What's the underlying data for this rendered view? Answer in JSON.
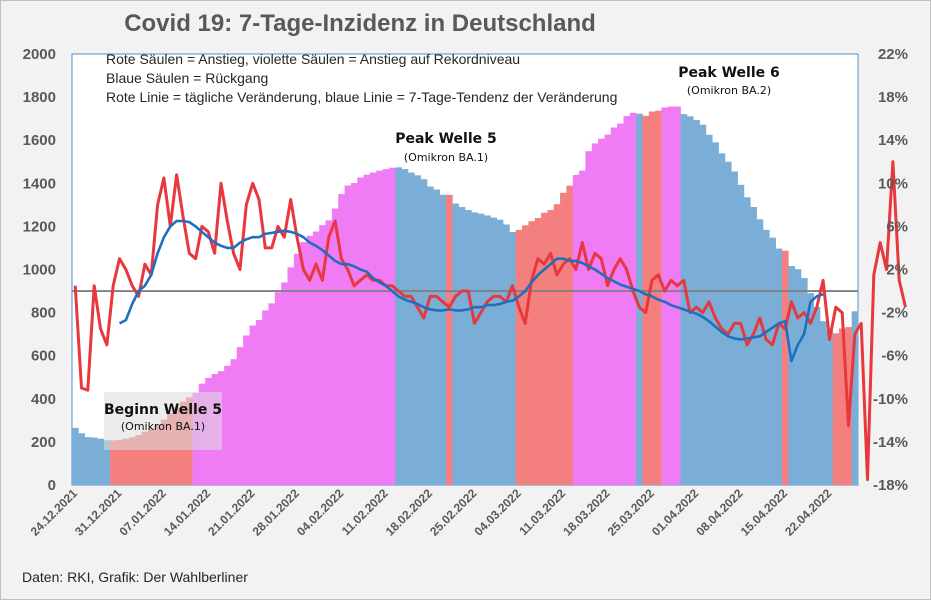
{
  "title": "Covid 19: 7-Tage-Inzidenz in Deutschland",
  "source": "Daten: RKI, Grafik: Der Wahlberliner",
  "colors": {
    "rise": "#f47f7f",
    "record": "#f07cf5",
    "decline": "#7aaed6",
    "daily_line": "#e8383d",
    "trend_line": "#1f6fbf",
    "baseline": "#808080"
  },
  "chart_data": {
    "type": "bar",
    "title": "Covid 19: 7-Tage-Inzidenz in Deutschland",
    "legend": [
      "Rote Säulen = Anstieg, violette Säulen = Anstieg auf Rekordniveau",
      "Blaue Säulen = Rückgang",
      "Rote Linie = tägliche Veränderung, blaue Linie = 7-Tage-Tendenz der Veränderung"
    ],
    "y_left": {
      "min": 0,
      "max": 2000,
      "ticks": [
        "0",
        "200",
        "400",
        "600",
        "800",
        "1000",
        "1200",
        "1400",
        "1600",
        "1800",
        "2000"
      ]
    },
    "y_right": {
      "min": -18,
      "max": 22,
      "ticks": [
        "-18%",
        "-14%",
        "-10%",
        "-6%",
        "-2%",
        "2%",
        "6%",
        "10%",
        "14%",
        "18%",
        "22%"
      ]
    },
    "x_ticks": [
      "24.12.2021",
      "31.12.2021",
      "07.01.2022",
      "14.01.2022",
      "21.01.2022",
      "28.01.2022",
      "04.02.2022",
      "11.02.2022",
      "18.02.2022",
      "25.02.2022",
      "04.03.2022",
      "11.03.2022",
      "18.03.2022",
      "25.03.2022",
      "01.04.2022",
      "08.04.2022",
      "15.04.2022",
      "22.04.2022"
    ],
    "baseline_pct": 0,
    "bars": [
      [
        265,
        "D"
      ],
      [
        240,
        "D"
      ],
      [
        222,
        "D"
      ],
      [
        220,
        "D"
      ],
      [
        215,
        "D"
      ],
      [
        208,
        "D"
      ],
      [
        207,
        "R"
      ],
      [
        210,
        "R"
      ],
      [
        215,
        "R"
      ],
      [
        222,
        "R"
      ],
      [
        232,
        "R"
      ],
      [
        248,
        "R"
      ],
      [
        262,
        "R"
      ],
      [
        279,
        "R"
      ],
      [
        303,
        "R"
      ],
      [
        334,
        "R"
      ],
      [
        360,
        "R"
      ],
      [
        387,
        "R"
      ],
      [
        407,
        "R"
      ],
      [
        428,
        "V"
      ],
      [
        470,
        "V"
      ],
      [
        497,
        "V"
      ],
      [
        515,
        "V"
      ],
      [
        528,
        "V"
      ],
      [
        553,
        "V"
      ],
      [
        584,
        "V"
      ],
      [
        640,
        "V"
      ],
      [
        694,
        "V"
      ],
      [
        740,
        "V"
      ],
      [
        766,
        "V"
      ],
      [
        810,
        "V"
      ],
      [
        843,
        "V"
      ],
      [
        894,
        "V"
      ],
      [
        940,
        "V"
      ],
      [
        1010,
        "V"
      ],
      [
        1073,
        "V"
      ],
      [
        1127,
        "V"
      ],
      [
        1156,
        "V"
      ],
      [
        1176,
        "V"
      ],
      [
        1206,
        "V"
      ],
      [
        1228,
        "V"
      ],
      [
        1283,
        "V"
      ],
      [
        1350,
        "V"
      ],
      [
        1390,
        "V"
      ],
      [
        1401,
        "V"
      ],
      [
        1427,
        "V"
      ],
      [
        1440,
        "V"
      ],
      [
        1450,
        "V"
      ],
      [
        1459,
        "V"
      ],
      [
        1466,
        "V"
      ],
      [
        1472,
        "V"
      ],
      [
        1474,
        "D"
      ],
      [
        1466,
        "D"
      ],
      [
        1450,
        "D"
      ],
      [
        1437,
        "D"
      ],
      [
        1419,
        "D"
      ],
      [
        1385,
        "D"
      ],
      [
        1371,
        "D"
      ],
      [
        1347,
        "D"
      ],
      [
        1346,
        "R"
      ],
      [
        1306,
        "D"
      ],
      [
        1290,
        "D"
      ],
      [
        1276,
        "D"
      ],
      [
        1265,
        "D"
      ],
      [
        1259,
        "D"
      ],
      [
        1251,
        "D"
      ],
      [
        1241,
        "D"
      ],
      [
        1231,
        "D"
      ],
      [
        1209,
        "D"
      ],
      [
        1174,
        "D"
      ],
      [
        1184,
        "R"
      ],
      [
        1205,
        "R"
      ],
      [
        1224,
        "R"
      ],
      [
        1239,
        "R"
      ],
      [
        1263,
        "R"
      ],
      [
        1276,
        "R"
      ],
      [
        1303,
        "R"
      ],
      [
        1356,
        "R"
      ],
      [
        1389,
        "R"
      ],
      [
        1439,
        "V"
      ],
      [
        1459,
        "V"
      ],
      [
        1549,
        "V"
      ],
      [
        1585,
        "V"
      ],
      [
        1607,
        "V"
      ],
      [
        1626,
        "V"
      ],
      [
        1659,
        "V"
      ],
      [
        1677,
        "V"
      ],
      [
        1712,
        "V"
      ],
      [
        1727,
        "V"
      ],
      [
        1723,
        "D"
      ],
      [
        1713,
        "R"
      ],
      [
        1733,
        "R"
      ],
      [
        1737,
        "R"
      ],
      [
        1752,
        "V"
      ],
      [
        1756,
        "V"
      ],
      [
        1756,
        "V"
      ],
      [
        1721,
        "D"
      ],
      [
        1711,
        "D"
      ],
      [
        1694,
        "D"
      ],
      [
        1672,
        "D"
      ],
      [
        1625,
        "D"
      ],
      [
        1590,
        "D"
      ],
      [
        1539,
        "D"
      ],
      [
        1500,
        "D"
      ],
      [
        1455,
        "D"
      ],
      [
        1393,
        "D"
      ],
      [
        1335,
        "D"
      ],
      [
        1290,
        "D"
      ],
      [
        1233,
        "D"
      ],
      [
        1184,
        "D"
      ],
      [
        1148,
        "D"
      ],
      [
        1097,
        "D"
      ],
      [
        1087,
        "R"
      ],
      [
        1016,
        "D"
      ],
      [
        1001,
        "D"
      ],
      [
        960,
        "D"
      ],
      [
        890,
        "D"
      ],
      [
        826,
        "D"
      ],
      [
        760,
        "D"
      ],
      [
        715,
        "D"
      ],
      [
        704,
        "R"
      ],
      [
        726,
        "R"
      ],
      [
        733,
        "R"
      ],
      [
        806,
        "D"
      ]
    ],
    "daily_change_pct": [
      0.5,
      -9.0,
      -9.2,
      0.5,
      -3.5,
      -5.0,
      0.5,
      3.0,
      2.0,
      0.5,
      -0.5,
      2.5,
      1.5,
      8.0,
      10.5,
      6.0,
      10.8,
      7.0,
      3.5,
      3.0,
      6.0,
      5.5,
      3.5,
      10.0,
      6.5,
      3.5,
      2.0,
      8.0,
      10.0,
      8.5,
      4.0,
      4.0,
      6.0,
      5.0,
      8.5,
      5.0,
      2.0,
      1.0,
      2.5,
      1.0,
      5.0,
      6.5,
      3.0,
      2.0,
      0.5,
      1.0,
      1.5,
      1.0,
      1.0,
      0.5,
      0.5,
      0.0,
      -0.5,
      -0.5,
      -1.5,
      -2.5,
      -0.5,
      -0.5,
      -1.0,
      -1.5,
      -0.5,
      0.0,
      0.0,
      -3.0,
      -2.0,
      -1.0,
      -0.5,
      -0.5,
      -1.0,
      0.5,
      -1.5,
      -3.0,
      1.0,
      3.0,
      2.5,
      3.5,
      1.5,
      2.5,
      3.0,
      2.0,
      4.5,
      2.0,
      3.5,
      3.0,
      0.5,
      2.0,
      3.0,
      2.0,
      0.0,
      -1.5,
      -2.0,
      1.0,
      1.5,
      0.0,
      1.0,
      0.5,
      1.0,
      -2.0,
      -1.5,
      -2.0,
      -1.0,
      -2.5,
      -3.5,
      -4.0,
      -3.0,
      -3.0,
      -5.0,
      -4.0,
      -2.5,
      -4.5,
      -5.0,
      -3.0,
      -3.5,
      -1.0,
      -2.5,
      -2.0,
      -3.0,
      -1.5,
      1.0,
      -4.5,
      -1.5,
      -2.0,
      -12.5,
      -4.0,
      -3.0,
      -17.5,
      1.5,
      4.5,
      2.0,
      12.0,
      1.0,
      -1.5
    ],
    "trend_start_index": 7,
    "trend_change_pct": [
      -3.0,
      -2.7,
      -1.2,
      0.0,
      0.5,
      1.5,
      3.5,
      5.0,
      6.0,
      6.5,
      6.5,
      6.4,
      6.0,
      5.5,
      5.0,
      4.5,
      4.2,
      4.0,
      4.0,
      4.5,
      4.8,
      5.0,
      5.0,
      5.3,
      5.4,
      5.5,
      5.6,
      5.5,
      5.3,
      5.0,
      4.5,
      4.2,
      3.8,
      3.3,
      2.8,
      2.5,
      2.5,
      2.3,
      2.0,
      1.8,
      1.2,
      0.8,
      0.5,
      0.0,
      -0.5,
      -0.8,
      -1.0,
      -1.2,
      -1.5,
      -1.7,
      -1.8,
      -1.8,
      -1.7,
      -1.8,
      -1.8,
      -1.7,
      -1.5,
      -1.5,
      -1.3,
      -1.3,
      -1.2,
      -1.0,
      -0.9,
      -0.5,
      0.0,
      0.8,
      1.5,
      2.0,
      2.5,
      3.0,
      3.0,
      2.8,
      2.8,
      2.6,
      2.3,
      2.0,
      1.6,
      1.2,
      0.9,
      0.6,
      0.4,
      0.2,
      0.0,
      -0.3,
      -0.5,
      -0.8,
      -1.0,
      -1.3,
      -1.5,
      -1.7,
      -1.9,
      -2.1,
      -2.4,
      -2.8,
      -3.3,
      -3.8,
      -4.2,
      -4.4,
      -4.5,
      -4.4,
      -4.3,
      -4.2,
      -3.8,
      -3.4,
      -3.0,
      -2.8,
      -6.5,
      -5.0,
      -4.0,
      -1.0,
      -0.5,
      -0.3
    ],
    "annotations": [
      {
        "title": "Beginn Welle 5",
        "subtitle": "(Omikron BA.1)"
      },
      {
        "title": "Peak Welle 5",
        "subtitle": "(Omikron BA.1)"
      },
      {
        "title": "Peak Welle 6",
        "subtitle": "(Omikron BA.2)"
      }
    ]
  }
}
